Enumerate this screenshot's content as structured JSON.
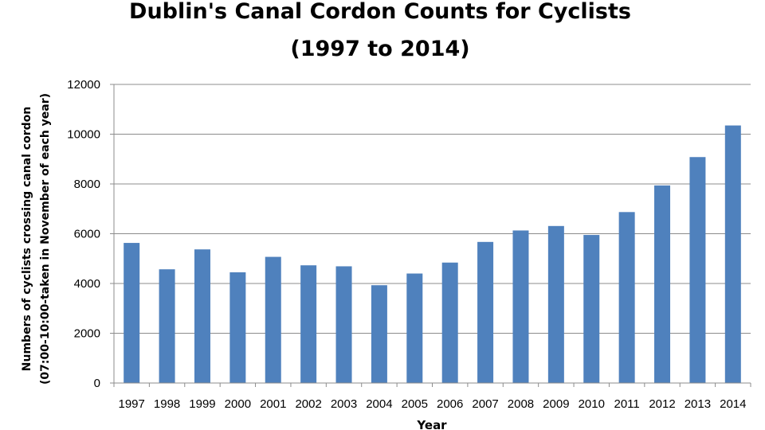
{
  "chart_data": {
    "type": "bar",
    "title_lines": [
      "Dublin's Canal Cordon Counts for Cyclists",
      "(1997 to 2014)"
    ],
    "ylabel_lines": [
      "Numbers of cyclists crossing canal cordon",
      "(07:00-10:00-taken in November of each year)"
    ],
    "xlabel": "Year",
    "categories": [
      "1997",
      "1998",
      "1999",
      "2000",
      "2001",
      "2002",
      "2003",
      "2004",
      "2005",
      "2006",
      "2007",
      "2008",
      "2009",
      "2010",
      "2011",
      "2012",
      "2013",
      "2014"
    ],
    "values": [
      5630,
      4570,
      5370,
      4450,
      5070,
      4730,
      4690,
      3930,
      4400,
      4840,
      5670,
      6130,
      6310,
      5950,
      6870,
      7940,
      9080,
      10350
    ],
    "yticks": [
      "0",
      "2000",
      "4000",
      "6000",
      "8000",
      "10000",
      "12000"
    ],
    "ylim": [
      0,
      12000
    ],
    "grid": true,
    "legend": false,
    "bar_color": "#4f81bd"
  }
}
